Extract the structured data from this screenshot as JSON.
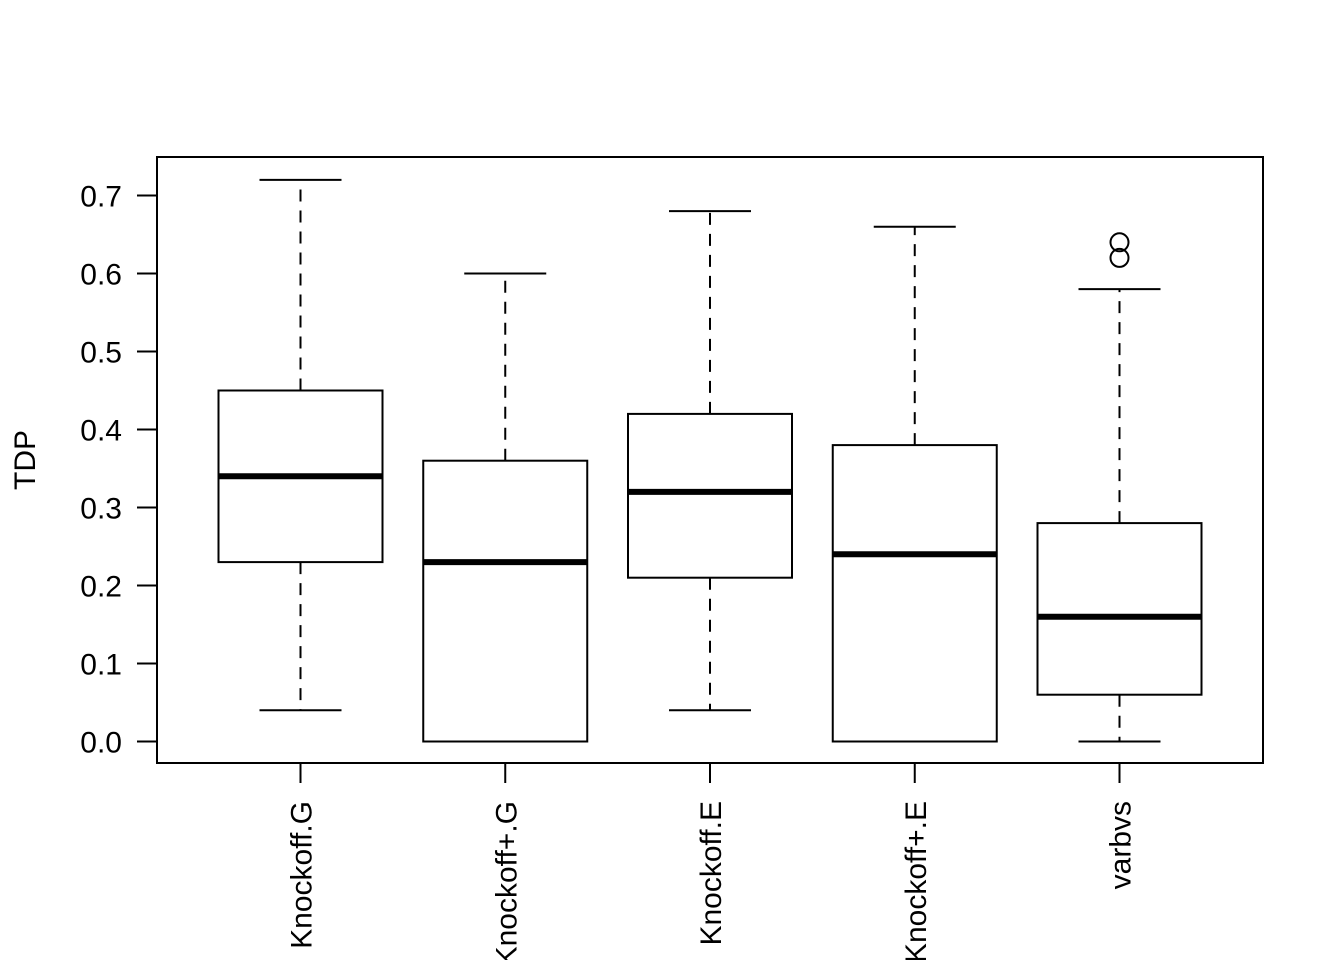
{
  "chart_data": {
    "type": "boxplot",
    "title": "",
    "xlabel": "",
    "ylabel": "TDP",
    "ylim": [
      0,
      0.7
    ],
    "y_ticks": [
      "0.0",
      "0.1",
      "0.2",
      "0.3",
      "0.4",
      "0.5",
      "0.6",
      "0.7"
    ],
    "y_tick_values": [
      0,
      0.1,
      0.2,
      0.3,
      0.4,
      0.5,
      0.6,
      0.7
    ],
    "categories": [
      "Knockoff.G",
      "Knockoff+.G",
      "Knockoff.E",
      "Knockoff+.E",
      "varbvs"
    ],
    "boxes": [
      {
        "name": "Knockoff.G",
        "min": 0.04,
        "q1": 0.23,
        "median": 0.34,
        "q3": 0.45,
        "max": 0.72,
        "outliers": []
      },
      {
        "name": "Knockoff+.G",
        "min": 0.0,
        "q1": 0.0,
        "median": 0.23,
        "q3": 0.36,
        "max": 0.6,
        "outliers": []
      },
      {
        "name": "Knockoff.E",
        "min": 0.04,
        "q1": 0.21,
        "median": 0.32,
        "q3": 0.42,
        "max": 0.68,
        "outliers": []
      },
      {
        "name": "Knockoff+.E",
        "min": 0.0,
        "q1": 0.0,
        "median": 0.24,
        "q3": 0.38,
        "max": 0.66,
        "outliers": []
      },
      {
        "name": "varbvs",
        "min": 0.0,
        "q1": 0.06,
        "median": 0.16,
        "q3": 0.28,
        "max": 0.58,
        "outliers": [
          0.62,
          0.64
        ]
      }
    ],
    "grid": false,
    "legend": "none"
  }
}
